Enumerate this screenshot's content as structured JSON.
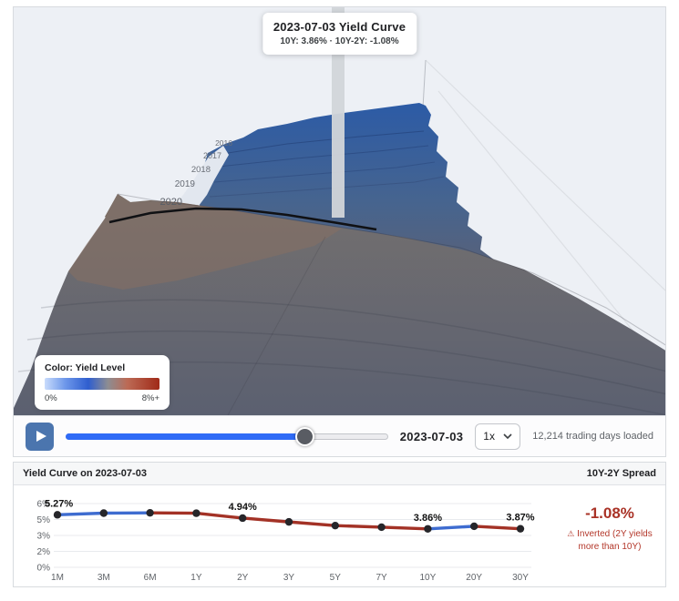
{
  "tooltip": {
    "title": "2023-07-03 Yield Curve",
    "subtitle": "10Y: 3.86% · 10Y-2Y: -1.08%"
  },
  "scene": {
    "year_labels": [
      "2016",
      "2017",
      "2018",
      "2019",
      "2020"
    ]
  },
  "legend": {
    "title": "Color: Yield Level",
    "min_label": "0%",
    "max_label": "8%+",
    "gradient": [
      "#c9dcfc",
      "#2f5ecf",
      "#8d8d92",
      "#bc6a55",
      "#a02a18"
    ]
  },
  "controls": {
    "date": "2023-07-03",
    "speed": "1x",
    "status": "12,214 trading days loaded",
    "progress_pct": 74,
    "play_button_color": "#4b75ae",
    "slider_fill_color": "#2f6bf6"
  },
  "panel": {
    "title": "Yield Curve on 2023-07-03",
    "spread_title": "10Y-2Y Spread",
    "spread_value": "-1.08%",
    "warning_icon": "⚠",
    "spread_note": "Inverted (2Y yields more than 10Y)",
    "spread_color": "#a93226"
  },
  "chart_data": {
    "type": "line",
    "title": "Yield Curve on 2023-07-03",
    "categories": [
      "1M",
      "3M",
      "6M",
      "1Y",
      "2Y",
      "3Y",
      "5Y",
      "7Y",
      "10Y",
      "20Y",
      "30Y"
    ],
    "values": [
      5.27,
      5.44,
      5.47,
      5.43,
      4.94,
      4.56,
      4.19,
      4.03,
      3.86,
      4.12,
      3.87
    ],
    "point_labels": {
      "1M": "5.27%",
      "2Y": "4.94%",
      "10Y": "3.86%",
      "30Y": "3.87%"
    },
    "y_ticks": [
      "0%",
      "2%",
      "3%",
      "5%",
      "6%"
    ],
    "ylim": [
      0,
      6.4
    ],
    "grid": true,
    "rising_color": "#3e6cd0",
    "falling_color": "#a33226",
    "point_color": "#26262a"
  }
}
